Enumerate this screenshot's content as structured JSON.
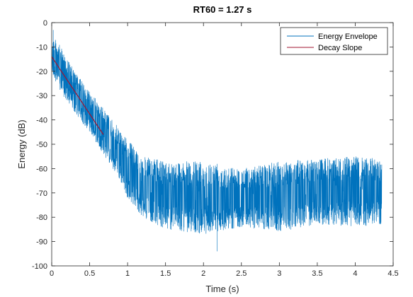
{
  "chart_data": {
    "type": "line",
    "title": "RT60 = 1.27 s",
    "xlabel": "Time (s)",
    "ylabel": "Energy (dB)",
    "xlim": [
      0,
      4.5
    ],
    "ylim": [
      -100,
      0
    ],
    "xticks": [
      "0",
      "0.5",
      "1",
      "1.5",
      "2",
      "2.5",
      "3",
      "3.5",
      "4",
      "4.5"
    ],
    "yticks": [
      "0",
      "-10",
      "-20",
      "-30",
      "-40",
      "-50",
      "-60",
      "-70",
      "-80",
      "-90",
      "-100"
    ],
    "grid": false,
    "legend_position": "top-right",
    "series": [
      {
        "name": "Energy Envelope",
        "color": "#0072BD",
        "x_range": [
          0,
          4.35
        ],
        "trend": {
          "x": [
            0,
            0.1,
            0.3,
            0.5,
            0.7,
            0.9,
            1.0,
            1.2,
            1.5,
            2.0,
            2.5,
            3.0,
            3.5,
            4.0,
            4.35
          ],
          "upper": [
            -5,
            -9,
            -20,
            -28,
            -36,
            -44,
            -48,
            -55,
            -57,
            -57,
            -60,
            -57,
            -56,
            -55,
            -56
          ],
          "lower": [
            -20,
            -28,
            -37,
            -45,
            -55,
            -65,
            -72,
            -80,
            -85,
            -87,
            -84,
            -86,
            -83,
            -84,
            -83
          ]
        },
        "extrema": {
          "max": -3,
          "min": -94,
          "min_x": 2.18
        }
      },
      {
        "name": "Decay Slope",
        "color": "#A2142F",
        "x": [
          0,
          0.68
        ],
        "y": [
          -14,
          -46
        ]
      }
    ]
  }
}
